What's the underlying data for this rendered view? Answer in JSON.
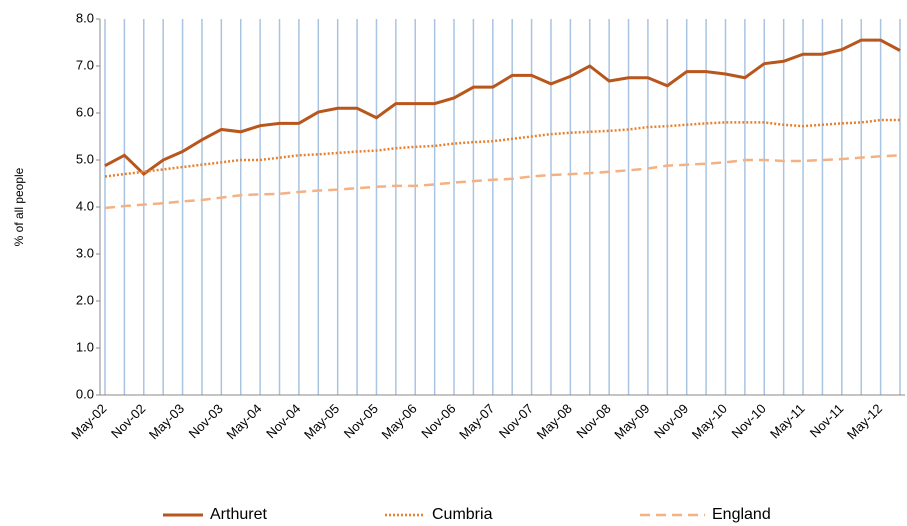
{
  "chart_data": {
    "type": "line",
    "ylabel": "% of all people",
    "categories": [
      "May-02",
      null,
      "Nov-02",
      null,
      "May-03",
      null,
      "Nov-03",
      null,
      "May-04",
      null,
      "Nov-04",
      null,
      "May-05",
      null,
      "Nov-05",
      null,
      "May-06",
      null,
      "Nov-06",
      null,
      "May-07",
      null,
      "Nov-07",
      null,
      "May-08",
      null,
      "Nov-08",
      null,
      "May-09",
      null,
      "Nov-09",
      null,
      "May-10",
      null,
      "Nov-10",
      null,
      "May-11",
      null,
      "Nov-11",
      null,
      "May-12",
      null
    ],
    "series": [
      {
        "name": "Arthuret",
        "color": "#b8561c",
        "style": "solid",
        "values": [
          4.88,
          5.1,
          4.7,
          5.0,
          5.18,
          5.43,
          5.65,
          5.6,
          5.73,
          5.78,
          5.78,
          6.02,
          6.1,
          6.1,
          5.9,
          6.2,
          6.2,
          6.2,
          6.32,
          6.55,
          6.55,
          6.8,
          6.8,
          6.62,
          6.78,
          7.0,
          6.68,
          6.75,
          6.75,
          6.58,
          6.88,
          6.88,
          6.83,
          6.75,
          7.05,
          7.1,
          7.25,
          7.25,
          7.35,
          7.55,
          7.55,
          7.33
        ]
      },
      {
        "name": "Cumbria",
        "color": "#e8802e",
        "style": "dotted",
        "values": [
          4.65,
          4.7,
          4.75,
          4.8,
          4.85,
          4.9,
          4.95,
          5.0,
          5.0,
          5.05,
          5.1,
          5.12,
          5.15,
          5.18,
          5.2,
          5.25,
          5.28,
          5.3,
          5.35,
          5.38,
          5.4,
          5.45,
          5.5,
          5.55,
          5.58,
          5.6,
          5.62,
          5.65,
          5.7,
          5.72,
          5.75,
          5.78,
          5.8,
          5.8,
          5.8,
          5.75,
          5.72,
          5.75,
          5.78,
          5.8,
          5.85,
          5.85
        ]
      },
      {
        "name": "England",
        "color": "#f4b183",
        "style": "dashed",
        "values": [
          3.98,
          4.02,
          4.05,
          4.08,
          4.12,
          4.15,
          4.2,
          4.25,
          4.27,
          4.28,
          4.32,
          4.35,
          4.37,
          4.4,
          4.43,
          4.45,
          4.45,
          4.48,
          4.52,
          4.55,
          4.58,
          4.6,
          4.65,
          4.68,
          4.7,
          4.72,
          4.75,
          4.78,
          4.82,
          4.88,
          4.9,
          4.92,
          4.95,
          5.0,
          5.0,
          4.98,
          4.98,
          5.0,
          5.02,
          5.05,
          5.08,
          5.1
        ]
      }
    ],
    "ylim": [
      0,
      8
    ],
    "yticks": [
      {
        "value": 0,
        "label": "0.0"
      },
      {
        "value": 1,
        "label": "1.0"
      },
      {
        "value": 2,
        "label": "2.0"
      },
      {
        "value": 3,
        "label": "3.0"
      },
      {
        "value": 4,
        "label": "4.0"
      },
      {
        "value": 5,
        "label": "5.0"
      },
      {
        "value": 6,
        "label": "6.0"
      },
      {
        "value": 7,
        "label": "7.0"
      },
      {
        "value": 8,
        "label": "8.0"
      }
    ],
    "xgrid": true,
    "grid_color": "#a9c4e2",
    "legend": "bottom"
  }
}
